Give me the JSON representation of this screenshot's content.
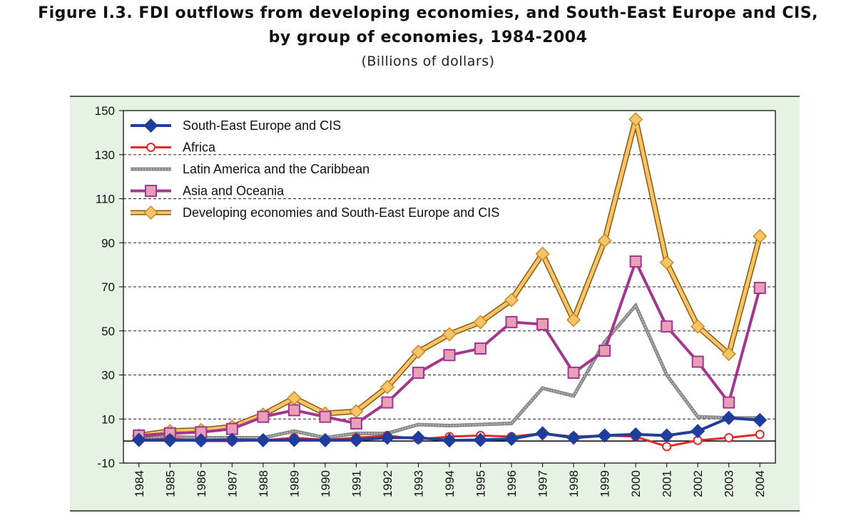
{
  "title_line1": "Figure I.3. FDI outflows from developing economies, and South-East Europe and CIS,",
  "title_line2": "by group of economies, 1984-2004",
  "subtitle": "(Billions of dollars)",
  "colors": {
    "panel_bg": "#e6f2e4",
    "plot_bg": "#ffffff",
    "see_cis": "#1f3e9c",
    "africa": "#e02a2a",
    "latam": "#8c8c8c",
    "asia": "#a3368f",
    "asia_marker": "#e8a0b8",
    "developing": "#cc8a1e",
    "developing_marker": "#f7c46a"
  },
  "chart_data": {
    "type": "line",
    "title": "Figure I.3. FDI outflows from developing economies, and South-East Europe and CIS, by group of economies, 1984-2004",
    "subtitle": "(Billions of dollars)",
    "xlabel": "",
    "ylabel": "",
    "ylim": [
      -10,
      150
    ],
    "yticks": [
      -10,
      10,
      30,
      50,
      70,
      90,
      110,
      130,
      150
    ],
    "grid": "horizontal dashed",
    "legend_position": "top-left",
    "categories": [
      "1984",
      "1985",
      "1986",
      "1987",
      "1988",
      "1989",
      "1990",
      "1991",
      "1992",
      "1993",
      "1994",
      "1995",
      "1996",
      "1997",
      "1998",
      "1999",
      "2000",
      "2001",
      "2002",
      "2003",
      "2004"
    ],
    "series": [
      {
        "name": "South-East Europe and CIS",
        "key": "see_cis",
        "marker": "diamond",
        "values": [
          0.5,
          0.4,
          0.3,
          0.5,
          0.4,
          0.5,
          0.4,
          0.5,
          1.5,
          1.5,
          0.3,
          0.5,
          1.0,
          3.5,
          1.5,
          2.5,
          3.0,
          2.5,
          4.5,
          10.5,
          9.5
        ]
      },
      {
        "name": "Africa",
        "key": "africa",
        "marker": "circle",
        "values": [
          0.5,
          1.0,
          0.0,
          0.0,
          0.3,
          1.5,
          0.5,
          1.5,
          2.5,
          0.8,
          2.0,
          2.5,
          2.0,
          3.5,
          2.0,
          2.5,
          2.0,
          -2.5,
          0.3,
          1.5,
          3.0
        ]
      },
      {
        "name": "Latin America and the Caribbean",
        "key": "latam",
        "marker": "none",
        "values": [
          1.0,
          2.0,
          1.5,
          1.5,
          1.5,
          4.5,
          1.5,
          3.5,
          3.5,
          7.5,
          7.0,
          7.5,
          8.0,
          24.0,
          20.5,
          45.0,
          61.5,
          30.0,
          11.0,
          10.5,
          10.5
        ]
      },
      {
        "name": "Asia and Oceania",
        "key": "asia",
        "marker": "square",
        "values": [
          2.5,
          3.5,
          4.0,
          5.5,
          11.0,
          14.0,
          11.0,
          8.0,
          17.5,
          31.0,
          39.0,
          42.0,
          54.0,
          53.0,
          31.0,
          41.0,
          81.5,
          52.0,
          36.0,
          17.5,
          69.5
        ]
      },
      {
        "name": "Developing economies and South-East Europe and CIS",
        "key": "developing",
        "marker": "diamond",
        "values": [
          2.5,
          4.5,
          5.0,
          6.5,
          12.0,
          19.5,
          12.5,
          13.5,
          24.5,
          40.5,
          48.5,
          54.0,
          64.0,
          85.0,
          55.0,
          91.0,
          146.0,
          81.0,
          52.0,
          39.5,
          93.0
        ]
      }
    ]
  }
}
